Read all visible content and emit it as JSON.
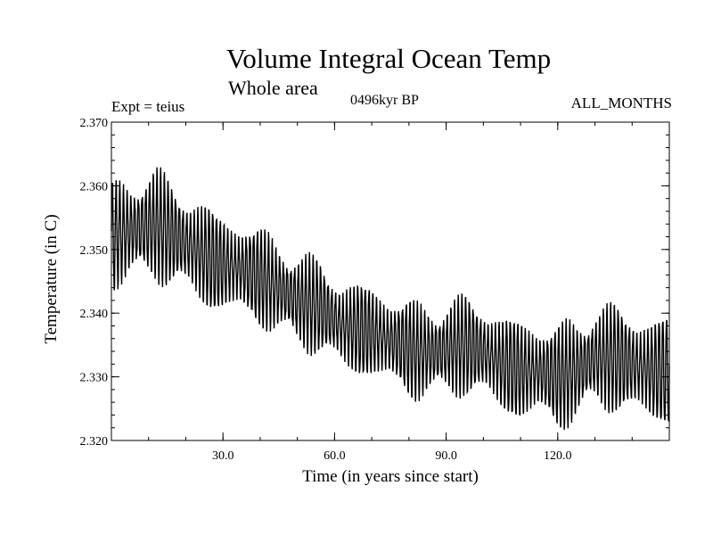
{
  "chart_data": {
    "type": "line",
    "title": "Volume Integral Ocean Temp",
    "subtitle": "Whole area",
    "experiment": "Expt = teius",
    "period": "0496kyr BP",
    "months": "ALL_MONTHS",
    "xlabel": "Time (in years since start)",
    "ylabel": "Temperature (in C)",
    "xlim": [
      0,
      150
    ],
    "ylim": [
      2.32,
      2.37
    ],
    "xticks": [
      30,
      60,
      90,
      120
    ],
    "xtick_labels": [
      "30.0",
      "60.0",
      "90.0",
      "120.0"
    ],
    "yticks": [
      2.32,
      2.33,
      2.34,
      2.35,
      2.36,
      2.37
    ],
    "ytick_labels": [
      "2.320",
      "2.330",
      "2.340",
      "2.350",
      "2.360",
      "2.370"
    ],
    "series": [
      {
        "name": "monthly volume-integral temperature",
        "description": "annual cycle oscillation about a declining mean",
        "mean_anchors": {
          "x": [
            0,
            5,
            12,
            20,
            28,
            35,
            42,
            50,
            56,
            62,
            70,
            78,
            82,
            88,
            95,
            100,
            105,
            110,
            115,
            120,
            125,
            130,
            135,
            140,
            145,
            150
          ],
          "y": [
            2.352,
            2.353,
            2.354,
            2.351,
            2.348,
            2.347,
            2.345,
            2.342,
            2.341,
            2.338,
            2.337,
            2.335,
            2.334,
            2.334,
            2.335,
            2.334,
            2.332,
            2.331,
            2.331,
            2.33,
            2.331,
            2.333,
            2.333,
            2.332,
            2.331,
            2.331
          ]
        },
        "amplitude_anchors": {
          "x": [
            0,
            15,
            30,
            60,
            90,
            120,
            150
          ],
          "y": [
            0.0085,
            0.0085,
            0.0078,
            0.0072,
            0.0075,
            0.008,
            0.0085
          ]
        },
        "cycle_period_years": 1.0
      }
    ]
  }
}
